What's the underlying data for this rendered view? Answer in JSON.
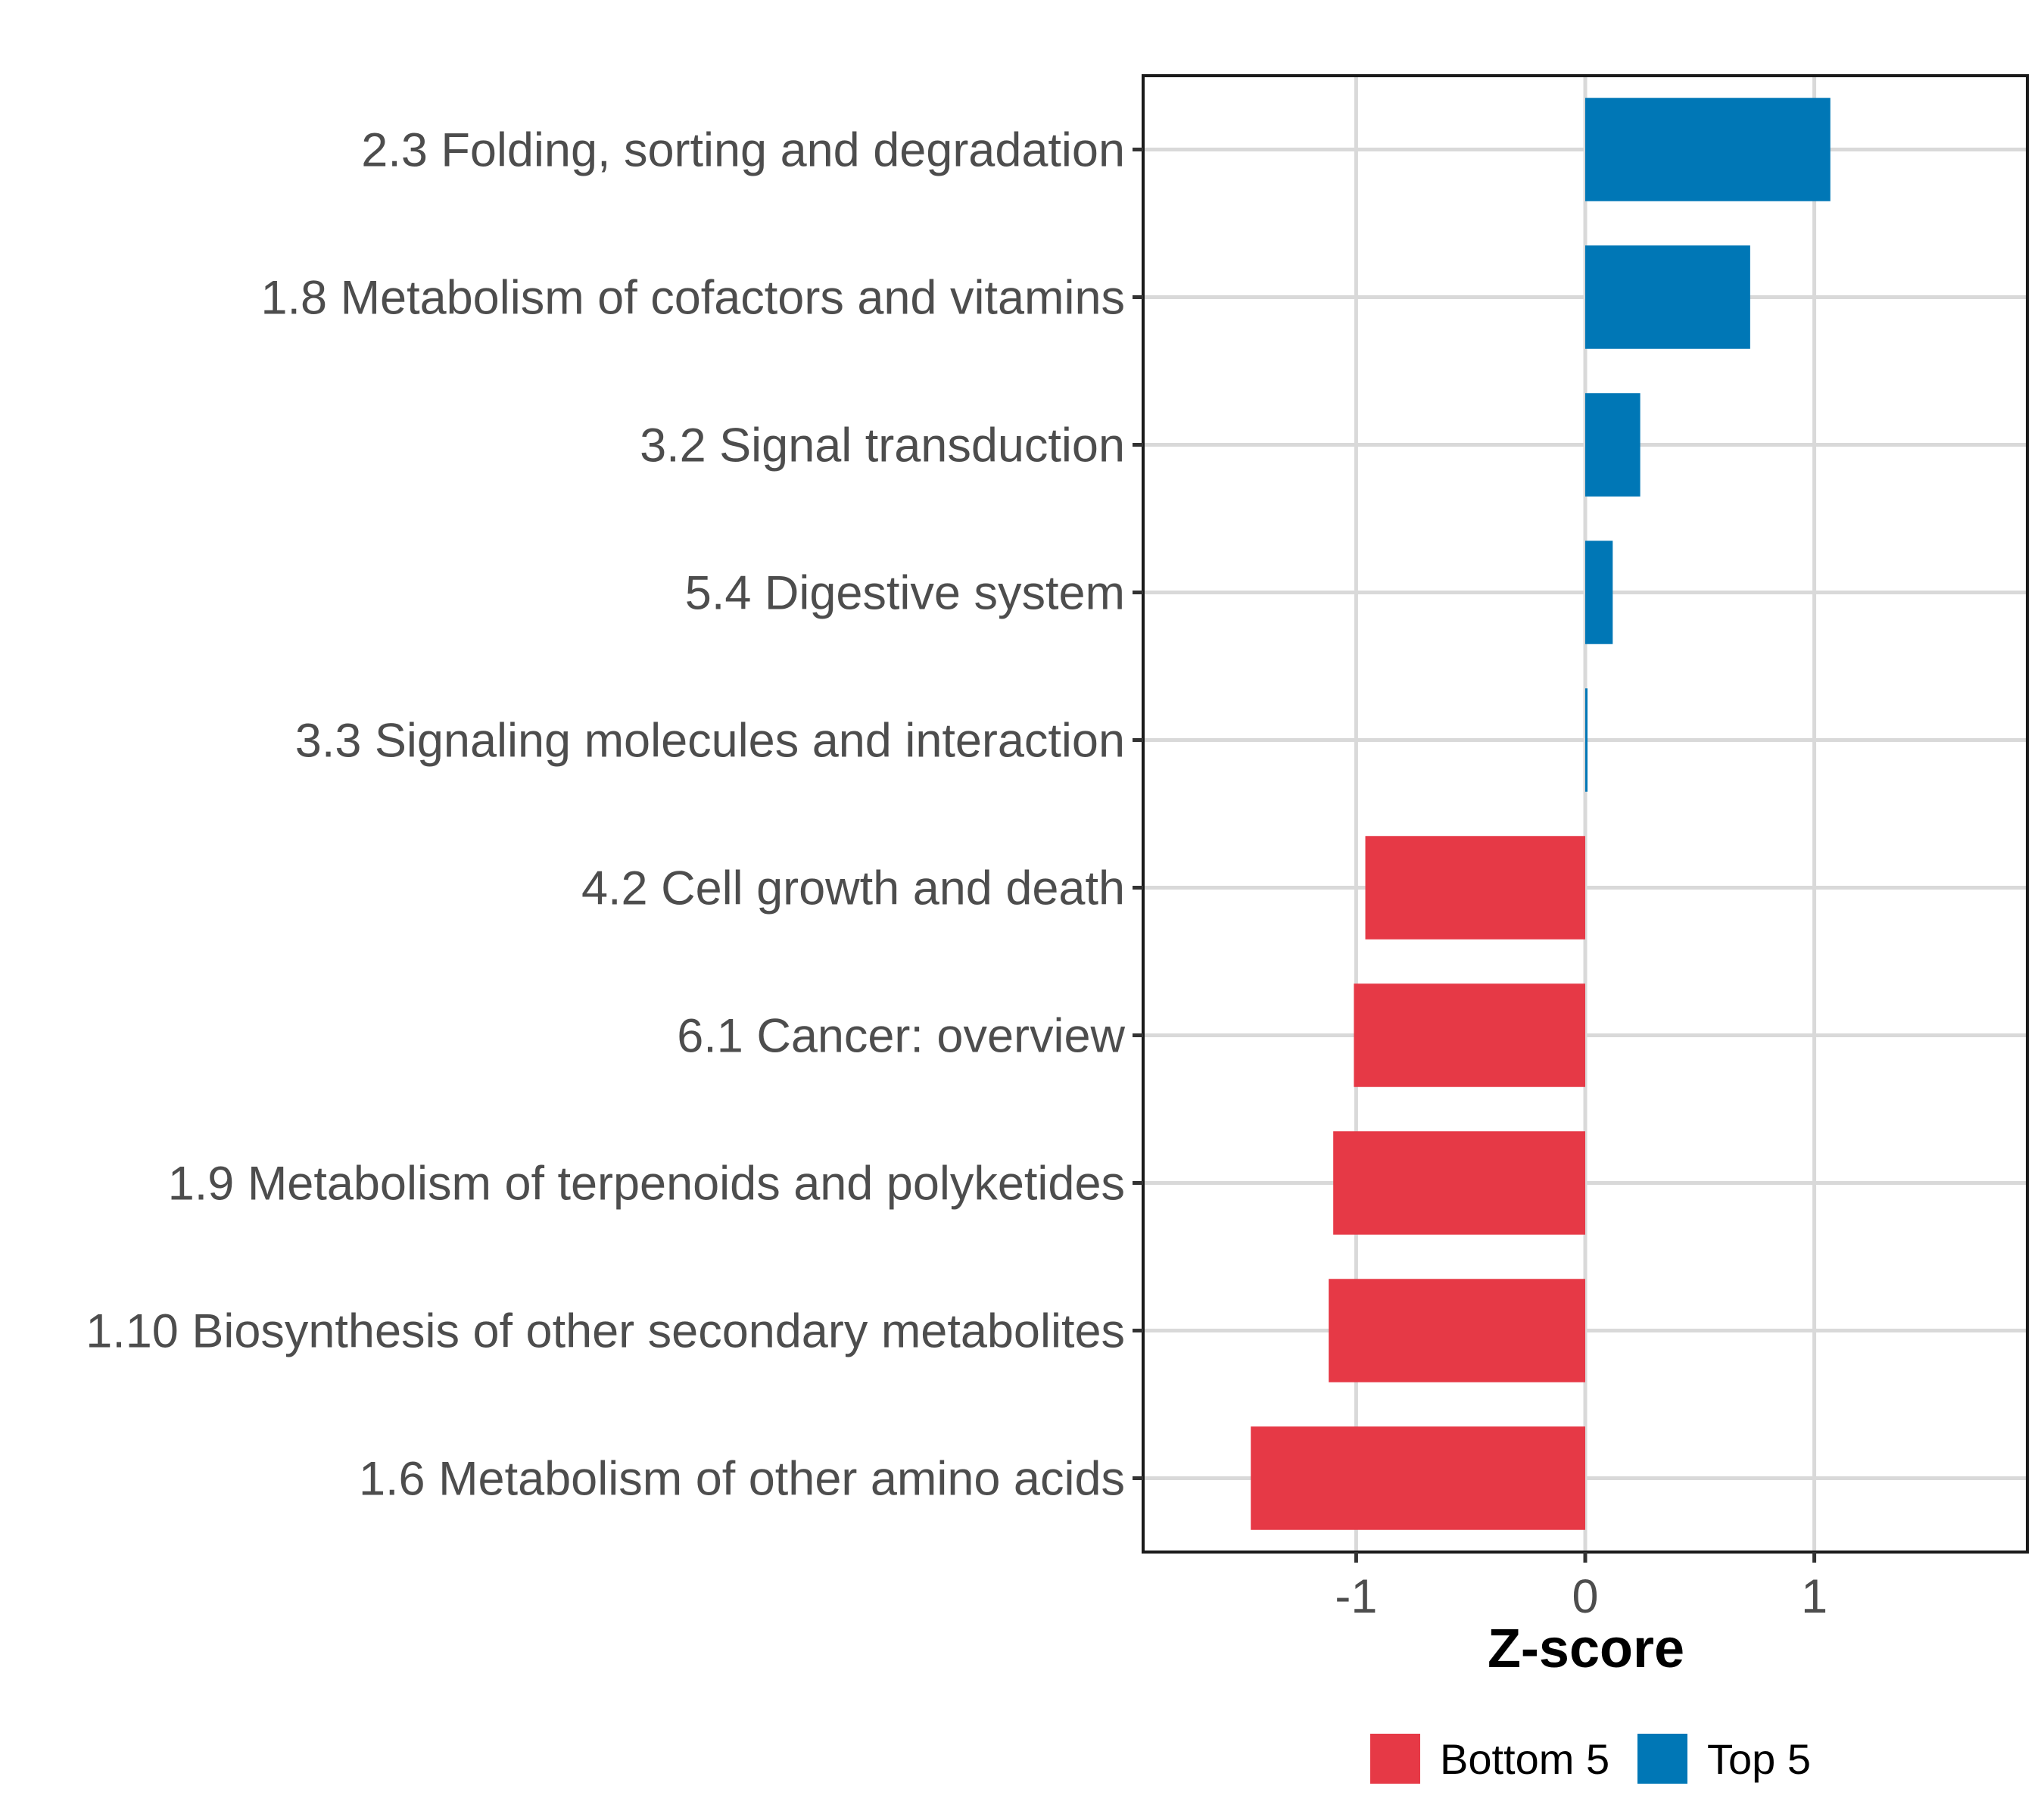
{
  "chart_data": {
    "type": "bar",
    "orientation": "horizontal",
    "title": "",
    "xlabel": "Z-score",
    "ylabel": "",
    "xlim": [
      -1.93,
      1.93
    ],
    "xticks": [
      -1,
      0,
      1
    ],
    "xtick_labels": [
      "-1",
      "0",
      "1"
    ],
    "grid": true,
    "legend_position": "bottom",
    "categories": [
      "2.3 Folding, sorting and degradation",
      "1.8 Metabolism of cofactors and vitamins",
      "3.2 Signal transduction",
      "5.4 Digestive system",
      "3.3 Signaling molecules and interaction",
      "4.2 Cell growth and death",
      "6.1 Cancer: overview",
      "1.9 Metabolism of terpenoids and polyketides",
      "1.10 Biosynthesis of other secondary metabolites",
      "1.6 Metabolism of other amino acids"
    ],
    "values": [
      1.07,
      0.72,
      0.24,
      0.12,
      0.01,
      -0.96,
      -1.01,
      -1.1,
      -1.12,
      -1.46
    ],
    "groups": [
      "Top 5",
      "Top 5",
      "Top 5",
      "Top 5",
      "Top 5",
      "Bottom 5",
      "Bottom 5",
      "Bottom 5",
      "Bottom 5",
      "Bottom 5"
    ],
    "legend": [
      {
        "name": "Bottom 5",
        "color": "#e63946"
      },
      {
        "name": "Top 5",
        "color": "#0077b6"
      }
    ]
  }
}
